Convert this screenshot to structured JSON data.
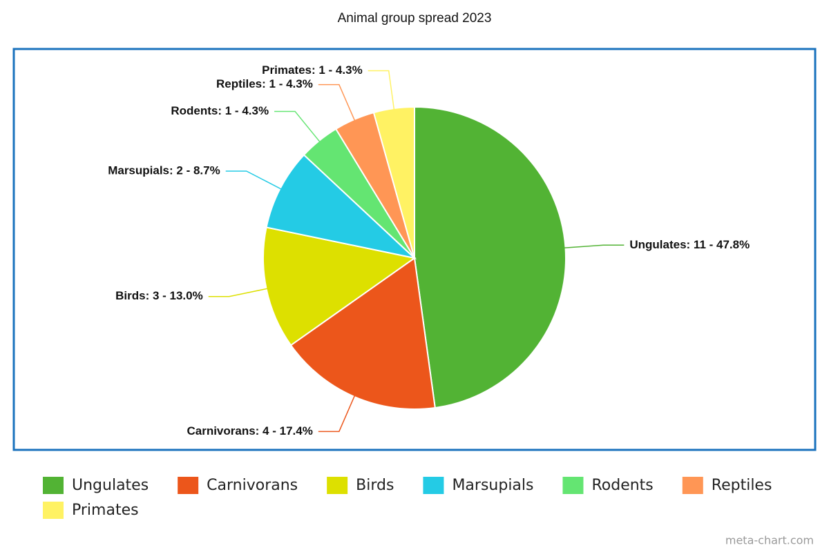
{
  "chart_data": {
    "type": "pie",
    "title": "Animal group spread 2023",
    "categories": [
      "Ungulates",
      "Carnivorans",
      "Birds",
      "Marsupials",
      "Rodents",
      "Reptiles",
      "Primates"
    ],
    "values": [
      11,
      4,
      3,
      2,
      1,
      1,
      1
    ],
    "value_labels": [
      "Ungulates: 11 - 47.8%",
      "Carnivorans: 4 - 17.4%",
      "Birds: 3 - 13.0%",
      "Marsupials: 2 - 8.7%",
      "Rodents: 1 - 4.3%",
      "Reptiles: 1 - 4.3%",
      "Primates: 1 - 4.3%"
    ],
    "colors": [
      "#52b334",
      "#ec561b",
      "#dde000",
      "#24cbe5",
      "#64e572",
      "#ff9655",
      "#fff263"
    ],
    "credit": "meta-chart.com"
  }
}
